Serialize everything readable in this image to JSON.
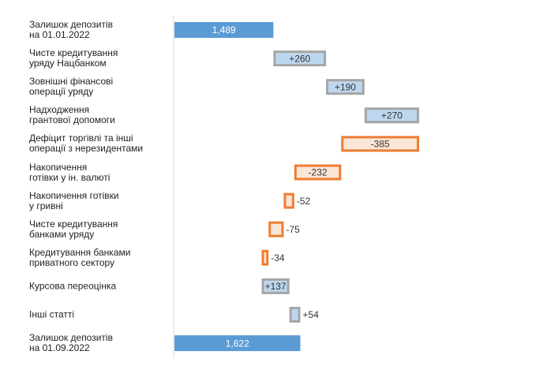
{
  "chart_data": {
    "type": "waterfall",
    "orientation": "horizontal",
    "categories": [
      "Залишок депозитів\nна 01.01.2022",
      "Чисте кредитування\nуряду Нацбанком",
      "Зовнішні фінансові\nоперації уряду",
      "Надходження\nгрантової допомоги",
      "Дефіцит торгівлі та інші\nоперації з нерезидентами",
      "Накопичення\nготівки у ін. валюті",
      "Накопичення готівки\nу гривні",
      "Чисте кредитування\nбанками уряду",
      "Кредитування банками\nприватного сектору",
      "Курсова переоцінка",
      "Інші статті",
      "Залишок депозитів\nна 01.09.2022"
    ],
    "values": [
      1489,
      260,
      190,
      270,
      -385,
      -232,
      -52,
      -75,
      -34,
      137,
      54,
      1622
    ],
    "value_labels": [
      "1,489",
      "+260",
      "+190",
      "+270",
      "-385",
      "-232",
      "-52",
      "-75",
      "-34",
      "+137",
      "+54",
      "1,622"
    ],
    "xlim": [
      1000,
      2700
    ],
    "colors": {
      "total": "#5b9bd5",
      "increase": "#bdd7ee",
      "increase_edge": "#a5a5a5",
      "decrease": "#fbe5d6",
      "decrease_edge": "#ed7d31"
    }
  }
}
